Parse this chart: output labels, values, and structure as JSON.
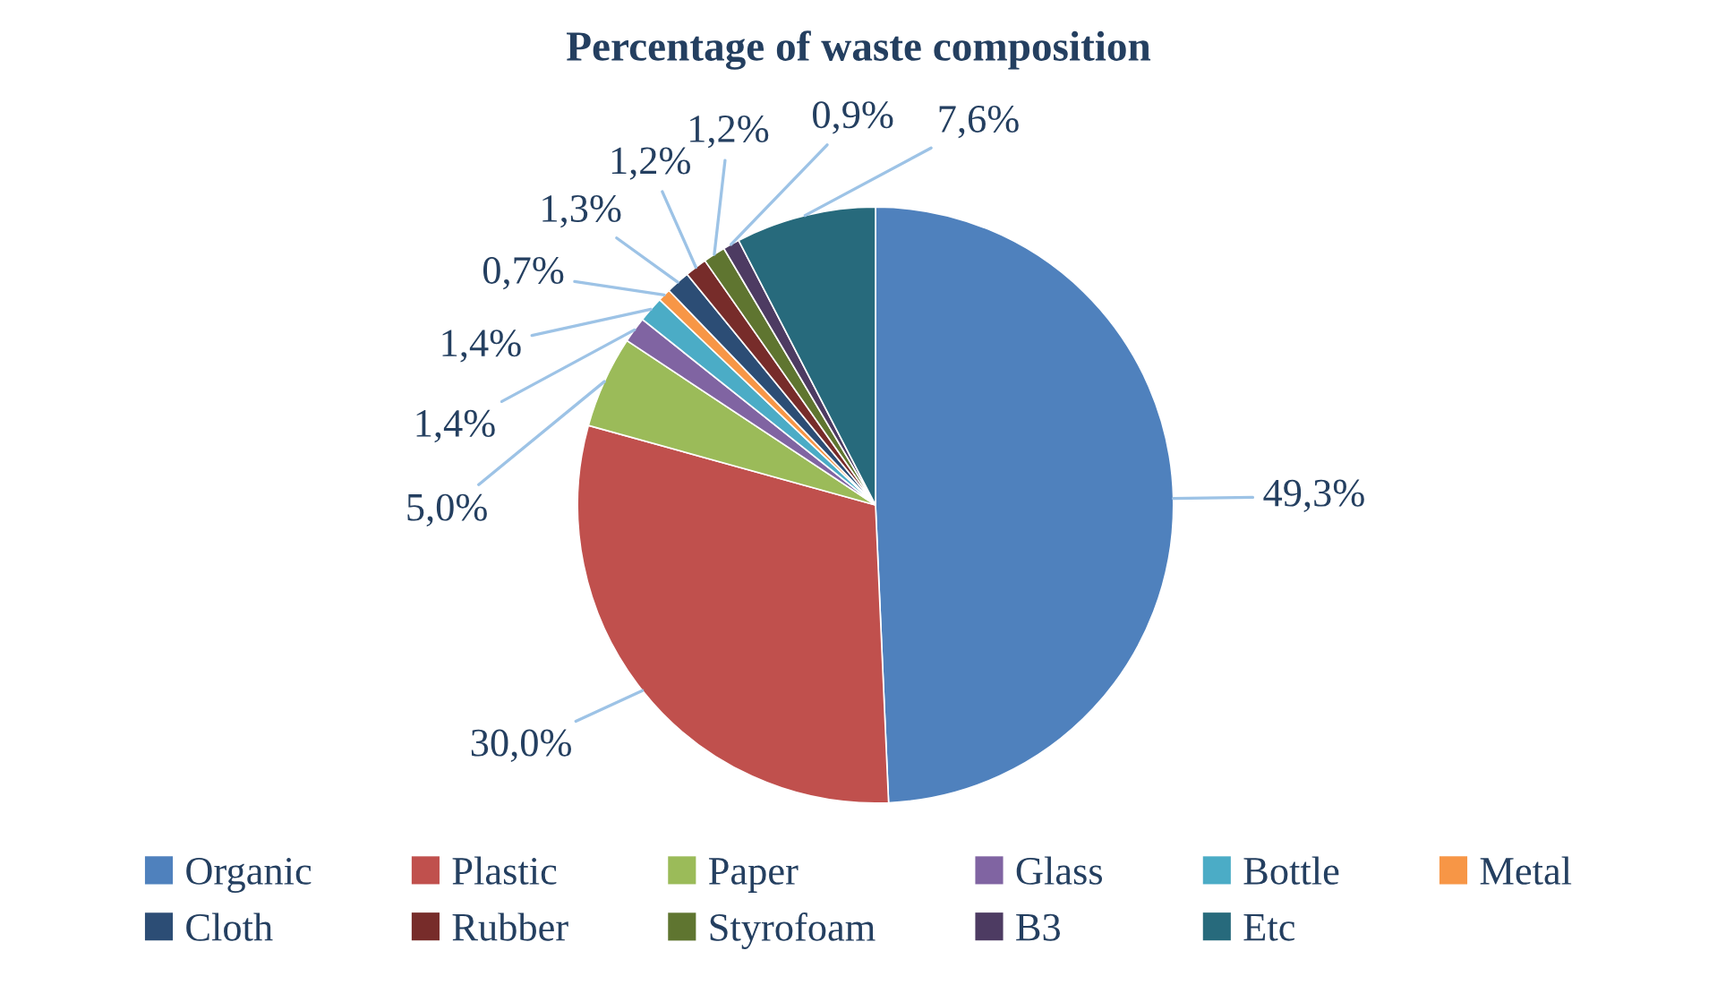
{
  "chart_data": {
    "type": "pie",
    "title": "Percentage of waste composition",
    "categories": [
      "Organic",
      "Plastic",
      "Paper",
      "Glass",
      "Bottle",
      "Metal",
      "Cloth",
      "Rubber",
      "Styrofoam",
      "B3",
      "Etc"
    ],
    "values": [
      49.3,
      30.0,
      5.0,
      1.4,
      1.4,
      0.7,
      1.3,
      1.2,
      1.2,
      0.9,
      7.6
    ],
    "value_labels": [
      "49,3%",
      "30,0%",
      "5,0%",
      "1,4%",
      "1,4%",
      "0,7%",
      "1,3%",
      "1,2%",
      "1,2%",
      "0,9%",
      "7,6%"
    ],
    "colors": [
      "#4f81bd",
      "#c0504d",
      "#9bbb59",
      "#8064a2",
      "#4bacc6",
      "#f79646",
      "#2c4d75",
      "#772c2a",
      "#5f7530",
      "#4d3b62",
      "#276a7c"
    ],
    "legend": "bottom"
  }
}
